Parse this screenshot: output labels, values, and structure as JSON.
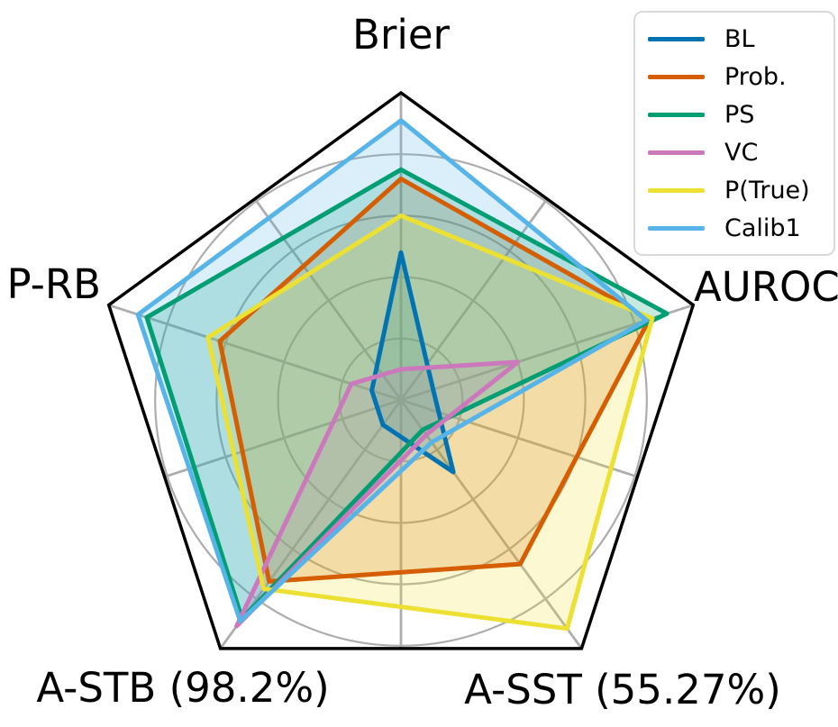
{
  "chart_data": {
    "type": "radar",
    "frame": "pentagon",
    "rlim": [
      0,
      1
    ],
    "grid_rings": [
      0.2,
      0.4,
      0.6,
      0.8,
      1.0
    ],
    "legend_position": "upper-right",
    "axes": [
      {
        "label": "Brier"
      },
      {
        "label": "AUROC"
      },
      {
        "label": "A-SST (55.27%)"
      },
      {
        "label": "A-STB (98.2%)"
      },
      {
        "label": "P-RB"
      }
    ],
    "series": [
      {
        "name": "BL",
        "color": "#0173b2",
        "values": [
          0.48,
          0.11,
          0.29,
          0.1,
          0.1
        ]
      },
      {
        "name": "Prob.",
        "color": "#d55e00",
        "values": [
          0.72,
          0.85,
          0.66,
          0.73,
          0.62
        ]
      },
      {
        "name": "PS",
        "color": "#029e73",
        "values": [
          0.75,
          0.91,
          0.12,
          0.88,
          0.87
        ]
      },
      {
        "name": "VC",
        "color": "#cc78bc",
        "values": [
          0.1,
          0.4,
          0.14,
          0.91,
          0.17
        ]
      },
      {
        "name": "P(True)",
        "color": "#ece133",
        "values": [
          0.6,
          0.86,
          0.92,
          0.76,
          0.66
        ]
      },
      {
        "name": "Calib1",
        "color": "#56b4e9",
        "values": [
          0.91,
          0.84,
          0.17,
          0.89,
          0.9
        ]
      }
    ]
  },
  "style": {
    "background": "#ffffff",
    "grid_color": "#adadad",
    "frame_color": "#000000",
    "text_color": "#000000",
    "fill_alpha": 0.22
  }
}
